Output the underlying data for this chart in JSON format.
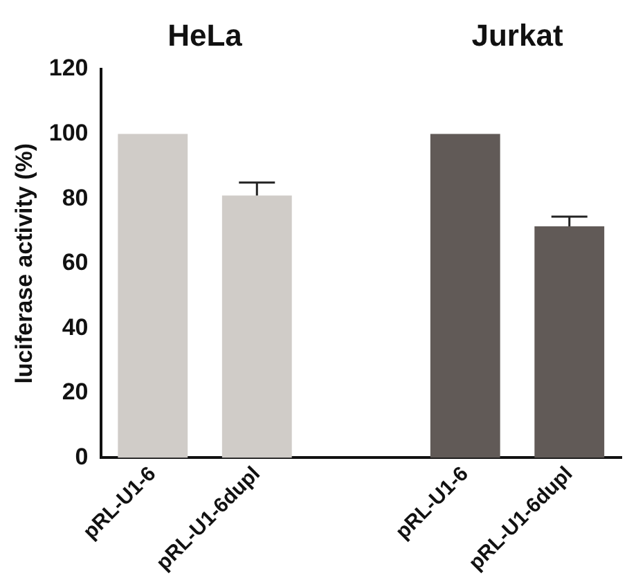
{
  "chart_data": {
    "type": "bar",
    "ylabel": "luciferase activity (%)",
    "categories": [
      "pRL-U1-6",
      "pRL-U1-6dupl",
      null,
      "pRL-U1-6",
      "pRL-U1-6dupl"
    ],
    "values": [
      100,
      81,
      null,
      100,
      71.5
    ],
    "colors": [
      "#d0ccc8",
      "#d0ccc8",
      "#ffffff",
      "#615a57",
      "#615a57"
    ],
    "errors": [
      null,
      [
        81,
        85
      ],
      null,
      null,
      [
        71.5,
        74.5
      ]
    ],
    "ylim": [
      0,
      120
    ],
    "yticks": [
      0,
      20,
      40,
      60,
      80,
      100,
      120
    ],
    "annotations": [
      "HeLa",
      "Jurkat"
    ],
    "grid": false,
    "legend": false
  }
}
